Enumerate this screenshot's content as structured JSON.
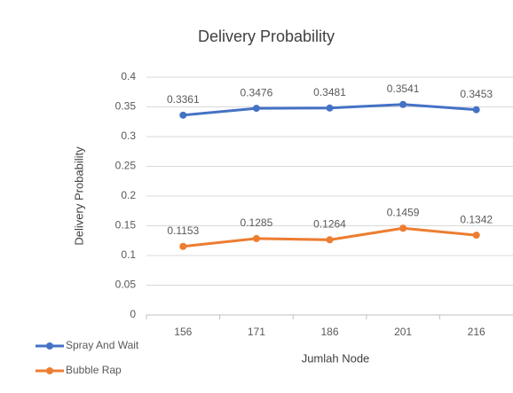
{
  "chart_data": {
    "type": "line",
    "title": "Delivery Probability",
    "x_label": "Jumlah Node",
    "y_label": "Delivery Probability",
    "categories": [
      "156",
      "171",
      "186",
      "201",
      "216"
    ],
    "series": [
      {
        "name": "Spray And Wait",
        "color": "#4472c4",
        "values": [
          0.3361,
          0.3476,
          0.3481,
          0.3541,
          0.3453
        ]
      },
      {
        "name": "Bubble Rap",
        "color": "#ed7d31",
        "values": [
          0.1153,
          0.1285,
          0.1264,
          0.1459,
          0.1342
        ]
      }
    ],
    "ylim": [
      0,
      0.4
    ],
    "yticks": [
      0,
      0.05,
      0.1,
      0.15,
      0.2,
      0.25,
      0.3,
      0.35,
      0.4
    ],
    "grid": true,
    "legend": "bottom-left",
    "data_labels": true
  }
}
